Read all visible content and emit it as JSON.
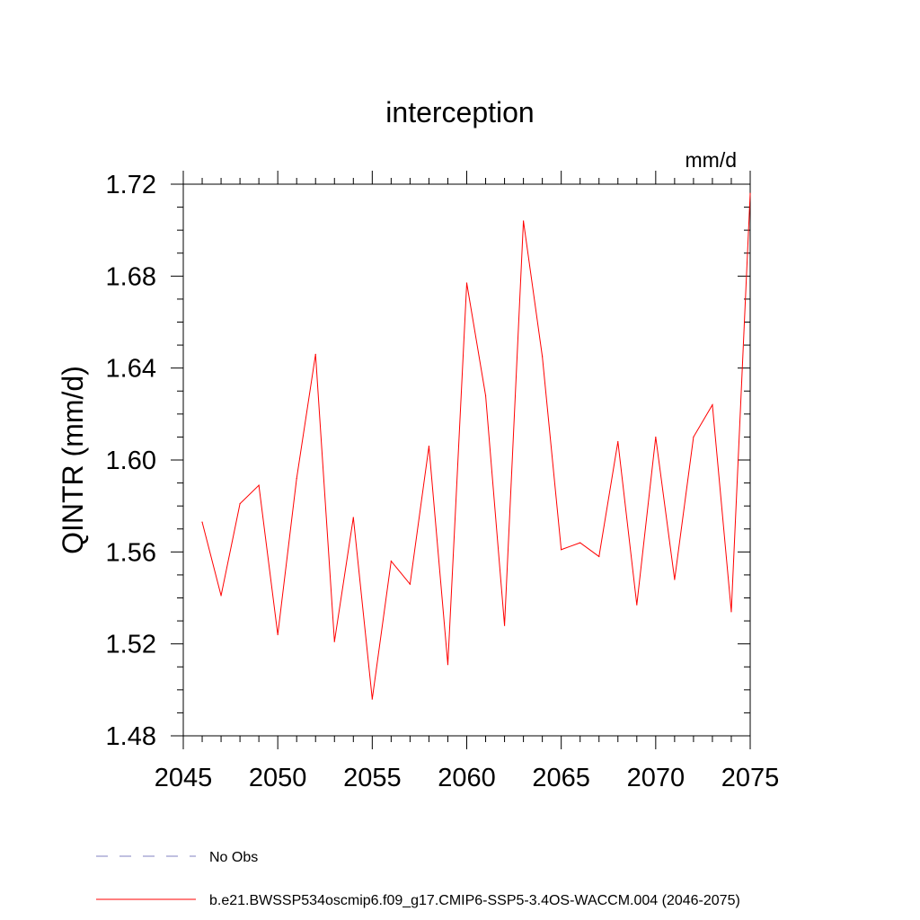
{
  "chart_data": {
    "type": "line",
    "title": "interception",
    "units_label": "mm/d",
    "ylabel": "QINTR  (mm/d)",
    "xlabel": "",
    "xlim": [
      2045,
      2075
    ],
    "ylim": [
      1.48,
      1.72
    ],
    "x_ticks": [
      2045,
      2050,
      2055,
      2060,
      2065,
      2070,
      2075
    ],
    "x_tick_labels": [
      "2045",
      "2050",
      "2055",
      "2060",
      "2065",
      "2070",
      "2075"
    ],
    "y_ticks": [
      1.48,
      1.52,
      1.56,
      1.6,
      1.64,
      1.68,
      1.72
    ],
    "y_tick_labels": [
      "1.48",
      "1.52",
      "1.56",
      "1.60",
      "1.64",
      "1.68",
      "1.72"
    ],
    "series": [
      {
        "name": "b.e21.BWSSP534oscmip6.f09_g17.CMIP6-SSP5-3.4OS-WACCM.004 (2046-2075)",
        "color": "#ff0000",
        "x": [
          2046,
          2047,
          2048,
          2049,
          2050,
          2051,
          2052,
          2053,
          2054,
          2055,
          2056,
          2057,
          2058,
          2059,
          2060,
          2061,
          2062,
          2063,
          2064,
          2065,
          2066,
          2067,
          2068,
          2069,
          2070,
          2071,
          2072,
          2073,
          2074,
          2075
        ],
        "values": [
          1.573,
          1.541,
          1.581,
          1.589,
          1.524,
          1.592,
          1.646,
          1.521,
          1.575,
          1.496,
          1.556,
          1.546,
          1.606,
          1.511,
          1.677,
          1.628,
          1.528,
          1.704,
          1.645,
          1.561,
          1.564,
          1.558,
          1.608,
          1.537,
          1.61,
          1.548,
          1.61,
          1.624,
          1.534,
          1.716
        ]
      }
    ],
    "legend": [
      {
        "label": "No Obs",
        "style": "dashed",
        "color": "#8080c0"
      },
      {
        "label": "b.e21.BWSSP534oscmip6.f09_g17.CMIP6-SSP5-3.4OS-WACCM.004 (2046-2075)",
        "style": "solid",
        "color": "#ff0000"
      }
    ],
    "legend_position": "bottom-left",
    "grid": false
  }
}
